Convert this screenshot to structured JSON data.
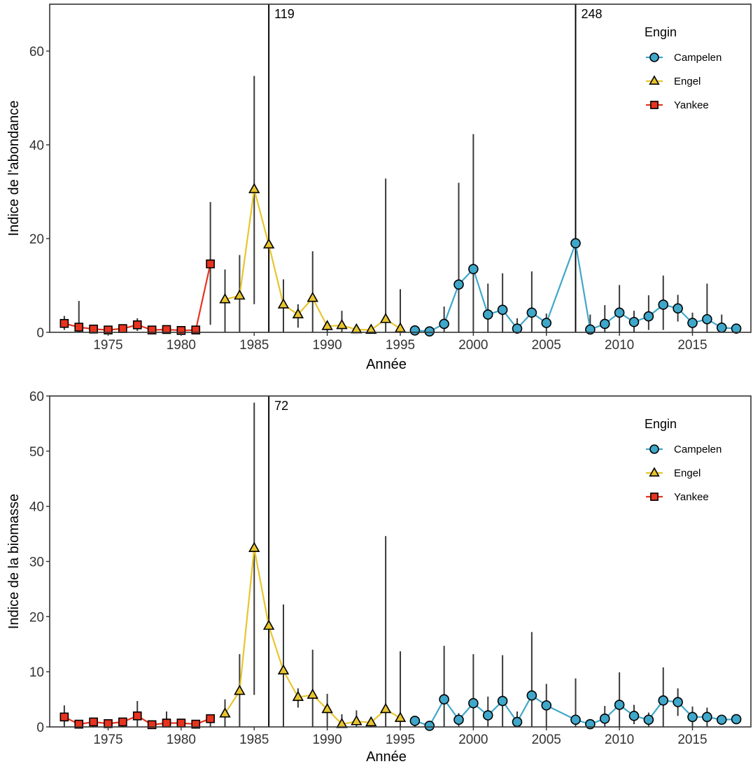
{
  "chart_data": [
    {
      "type": "line",
      "xlabel": "Année",
      "ylabel": "Indice de l'abondance",
      "xlim": [
        1971,
        2019
      ],
      "ylim": [
        0,
        70
      ],
      "xticks": [
        1975,
        1980,
        1985,
        1990,
        1995,
        2000,
        2005,
        2010,
        2015
      ],
      "yticks": [
        0,
        20,
        40,
        60
      ],
      "legend_title": "Engin",
      "legend_position": "top-right",
      "grid": false,
      "series": [
        {
          "name": "Campelen",
          "color": "#3fa7c9",
          "marker": "circle",
          "x": [
            1996,
            1997,
            1998,
            1999,
            2000,
            2001,
            2002,
            2003,
            2004,
            2005,
            2007,
            2008,
            2009,
            2010,
            2011,
            2012,
            2013,
            2014,
            2015,
            2016,
            2017,
            2018
          ],
          "y": [
            0.4,
            0.2,
            1.8,
            10.2,
            13.5,
            3.8,
            4.8,
            0.8,
            4.2,
            2.0,
            19.0,
            0.6,
            1.8,
            4.2,
            2.2,
            3.4,
            5.9,
            5.1,
            2.0,
            2.8,
            1.0,
            0.8
          ],
          "err_low": [
            0,
            0,
            0,
            0,
            0,
            0,
            0,
            0,
            0,
            0,
            0,
            0,
            0,
            0,
            0,
            0.5,
            0.5,
            2.3,
            0,
            0,
            0,
            0
          ],
          "err_high": [
            0,
            0,
            5.5,
            31.9,
            42.3,
            10.4,
            12.6,
            3.0,
            13.0,
            4.0,
            70,
            3.8,
            5.8,
            10.1,
            4.6,
            7.9,
            12.1,
            8.0,
            4.2,
            10.4,
            3.8,
            0
          ]
        },
        {
          "name": "Engel",
          "color": "#e8c52e",
          "marker": "triangle",
          "x": [
            1983,
            1984,
            1985,
            1986,
            1987,
            1988,
            1989,
            1990,
            1991,
            1992,
            1993,
            1994,
            1995
          ],
          "y": [
            7.0,
            7.8,
            30.5,
            18.7,
            5.9,
            3.8,
            7.3,
            1.3,
            1.5,
            0.6,
            0.5,
            2.8,
            0.8
          ],
          "err_low": [
            0,
            0,
            6.0,
            0,
            0,
            1.0,
            0,
            0,
            0,
            0,
            0,
            0,
            0
          ],
          "err_high": [
            13.4,
            16.5,
            54.7,
            70,
            11.3,
            6.0,
            17.3,
            1.8,
            4.6,
            0,
            0,
            32.8,
            9.2
          ]
        },
        {
          "name": "Yankee",
          "color": "#e8331f",
          "marker": "square",
          "x": [
            1972,
            1973,
            1974,
            1975,
            1976,
            1977,
            1978,
            1979,
            1980,
            1981,
            1982
          ],
          "y": [
            1.9,
            1.1,
            0.7,
            0.5,
            0.8,
            1.6,
            0.5,
            0.6,
            0.4,
            0.5,
            14.6
          ],
          "err_low": [
            0.5,
            0,
            0,
            0,
            0,
            0.3,
            0,
            0,
            0,
            0,
            1.6
          ],
          "err_high": [
            3.5,
            6.7,
            1.6,
            0,
            1.4,
            3.0,
            0.9,
            1.2,
            0,
            0,
            27.8
          ]
        }
      ],
      "vlines": [
        {
          "x": 1986,
          "label": "119"
        },
        {
          "x": 2007,
          "label": "248"
        }
      ]
    },
    {
      "type": "line",
      "xlabel": "Année",
      "ylabel": "Indice de la biomasse",
      "xlim": [
        1971,
        2019
      ],
      "ylim": [
        0,
        60
      ],
      "xticks": [
        1975,
        1980,
        1985,
        1990,
        1995,
        2000,
        2005,
        2010,
        2015
      ],
      "yticks": [
        0,
        10,
        20,
        30,
        40,
        50,
        60
      ],
      "legend_title": "Engin",
      "legend_position": "top-right",
      "grid": false,
      "series": [
        {
          "name": "Campelen",
          "color": "#3fa7c9",
          "marker": "circle",
          "x": [
            1996,
            1997,
            1998,
            1999,
            2000,
            2001,
            2002,
            2003,
            2004,
            2005,
            2007,
            2008,
            2009,
            2010,
            2011,
            2012,
            2013,
            2014,
            2015,
            2016,
            2017,
            2018
          ],
          "y": [
            1.1,
            0.2,
            5.0,
            1.3,
            4.3,
            2.1,
            4.7,
            0.9,
            5.7,
            3.9,
            1.3,
            0.5,
            1.5,
            4.0,
            2.0,
            1.3,
            4.8,
            4.5,
            1.8,
            1.8,
            1.3,
            1.4
          ],
          "err_low": [
            0,
            0,
            0,
            0,
            0,
            0,
            0,
            0,
            0,
            0,
            0,
            0,
            0,
            0,
            0.5,
            0,
            0,
            2.0,
            0,
            0,
            0,
            0
          ],
          "err_high": [
            1.8,
            0,
            14.7,
            2.5,
            13.2,
            5.5,
            13.0,
            2.8,
            17.2,
            7.8,
            8.8,
            0,
            3.8,
            9.9,
            4.0,
            2.6,
            10.8,
            7.0,
            3.7,
            3.5,
            0,
            0
          ]
        },
        {
          "name": "Engel",
          "color": "#e8c52e",
          "marker": "triangle",
          "x": [
            1983,
            1984,
            1985,
            1986,
            1987,
            1988,
            1989,
            1990,
            1991,
            1992,
            1993,
            1994,
            1995
          ],
          "y": [
            2.4,
            6.5,
            32.4,
            18.3,
            10.2,
            5.4,
            5.8,
            3.2,
            0.5,
            1.0,
            0.8,
            3.2,
            1.6
          ],
          "err_low": [
            0,
            0,
            5.8,
            0,
            0,
            3.5,
            0,
            0,
            0,
            0,
            0,
            0,
            0
          ],
          "err_high": [
            5.0,
            13.2,
            58.8,
            60,
            22.2,
            7.0,
            14.0,
            6.0,
            2.3,
            3.0,
            1.8,
            34.6,
            13.7
          ]
        },
        {
          "name": "Yankee",
          "color": "#e8331f",
          "marker": "square",
          "x": [
            1972,
            1973,
            1974,
            1975,
            1976,
            1977,
            1978,
            1979,
            1980,
            1981,
            1982
          ],
          "y": [
            1.8,
            0.5,
            0.9,
            0.6,
            0.9,
            2.0,
            0.4,
            0.7,
            0.7,
            0.5,
            1.5
          ],
          "err_low": [
            0,
            0,
            0,
            0,
            0,
            0,
            0,
            0,
            0,
            0,
            0
          ],
          "err_high": [
            3.9,
            1.0,
            1.4,
            0,
            1.2,
            4.7,
            0,
            2.8,
            1.1,
            0,
            2.0
          ]
        }
      ],
      "vlines": [
        {
          "x": 1986,
          "label": "72"
        }
      ]
    }
  ]
}
